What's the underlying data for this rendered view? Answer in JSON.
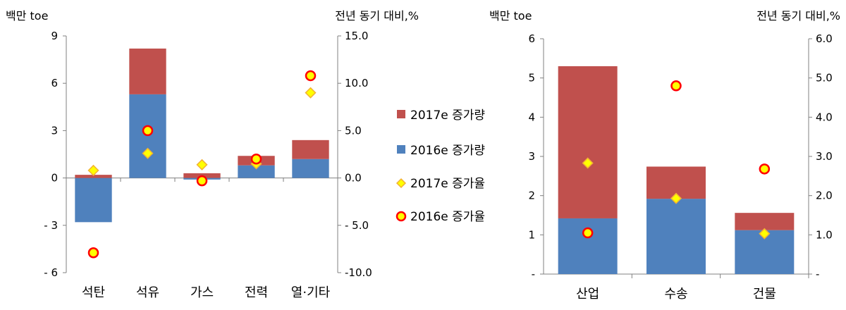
{
  "colors": {
    "inc_2017": "#C0504D",
    "inc_2016": "#4F81BD",
    "marker_2017_fill": "#FFFF00",
    "marker_2017_edge": "#F2B134",
    "marker_2016_fill": "#FFFF00",
    "marker_2016_edge": "#FF0000"
  },
  "chart_data": [
    {
      "type": "bar",
      "stacked": true,
      "categories": [
        "석탄",
        "석유",
        "가스",
        "전력",
        "열·기타"
      ],
      "left_axis_label": "백만 toe",
      "right_axis_label": "전년 동기 대비,%",
      "ylim": [
        -6,
        9
      ],
      "y_ticks": [
        -6,
        -3,
        0,
        3,
        6,
        9
      ],
      "y_tick_labels": [
        "- 6",
        "- 3",
        "0",
        "3",
        "6",
        "9"
      ],
      "y2lim": [
        -10,
        15
      ],
      "y2_ticks": [
        -10,
        -5,
        0,
        5,
        10,
        15
      ],
      "y2_tick_labels": [
        "-10.0",
        "- 5.0",
        "0.0",
        "5.0",
        "10.0",
        "15.0"
      ],
      "series": [
        {
          "name": "2016e 증가량",
          "kind": "bar",
          "values": [
            -2.8,
            5.3,
            -0.1,
            0.8,
            1.2
          ]
        },
        {
          "name": "2017e 증가량",
          "kind": "bar",
          "values": [
            0.2,
            2.9,
            0.3,
            0.6,
            1.2
          ]
        },
        {
          "name": "2017e 증가율",
          "kind": "marker",
          "axis": "right",
          "values": [
            0.8,
            2.6,
            1.4,
            1.5,
            9.0
          ]
        },
        {
          "name": "2016e 증가율",
          "kind": "marker",
          "axis": "right",
          "values": [
            -7.9,
            5.0,
            -0.3,
            2.0,
            10.8
          ]
        }
      ],
      "legend": [
        "2017e 증가량",
        "2016e 증가량",
        "2017e 증가율",
        "2016e 증가율"
      ],
      "legend_position": "right"
    },
    {
      "type": "bar",
      "stacked": true,
      "categories": [
        "산업",
        "수송",
        "건물"
      ],
      "left_axis_label": "백만 toe",
      "right_axis_label": "전년 동기 대비,%",
      "ylim": [
        0,
        6
      ],
      "y_ticks": [
        0,
        1,
        2,
        3,
        4,
        5,
        6
      ],
      "y_tick_labels": [
        "-",
        "1",
        "2",
        "3",
        "4",
        "5",
        "6"
      ],
      "y2lim": [
        0,
        6
      ],
      "y2_ticks": [
        0,
        1,
        2,
        3,
        4,
        5,
        6
      ],
      "y2_tick_labels": [
        "-",
        "1.0",
        "2.0",
        "3.0",
        "4.0",
        "5.0",
        "6.0"
      ],
      "series": [
        {
          "name": "2016e 증가량",
          "kind": "bar",
          "values": [
            1.42,
            1.92,
            1.12
          ]
        },
        {
          "name": "2017e 증가량",
          "kind": "bar",
          "values": [
            3.88,
            0.82,
            0.44
          ]
        },
        {
          "name": "2017e 증가율",
          "kind": "marker",
          "axis": "right",
          "values": [
            2.83,
            1.93,
            1.03
          ]
        },
        {
          "name": "2016e 증가율",
          "kind": "marker",
          "axis": "right",
          "values": [
            1.05,
            4.8,
            2.68
          ]
        }
      ]
    }
  ]
}
